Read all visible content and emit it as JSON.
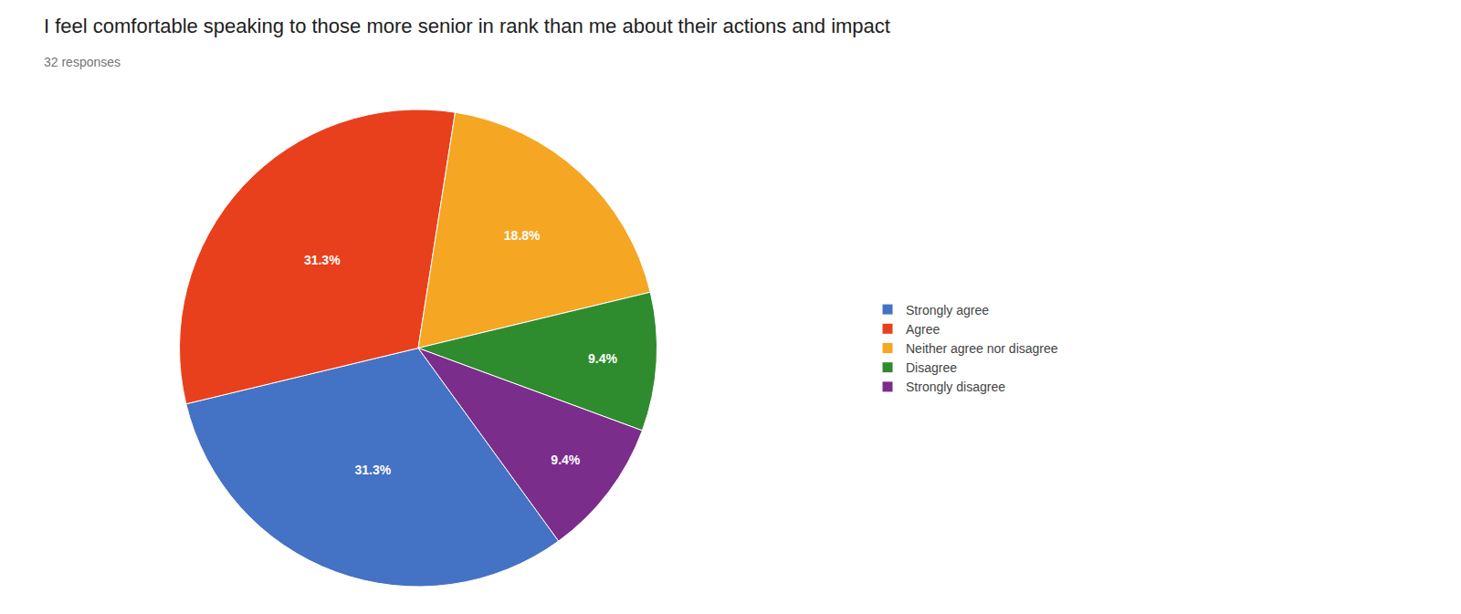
{
  "chart_data": {
    "type": "pie",
    "title": "I feel comfortable speaking to those more senior in rank than me about their actions and impact",
    "subtitle": "32 responses",
    "categories": [
      "Strongly agree",
      "Agree",
      "Neither agree nor disagree",
      "Disagree",
      "Strongly disagree"
    ],
    "values": [
      31.3,
      31.3,
      18.8,
      9.4,
      9.4
    ],
    "value_labels": [
      "31.3%",
      "31.3%",
      "18.8%",
      "9.4%",
      "9.4%"
    ],
    "colors": [
      "#4472c4",
      "#e8401c",
      "#f5a623",
      "#2e8b2e",
      "#7b2d8b"
    ],
    "data_labels": true,
    "legend": "right"
  }
}
